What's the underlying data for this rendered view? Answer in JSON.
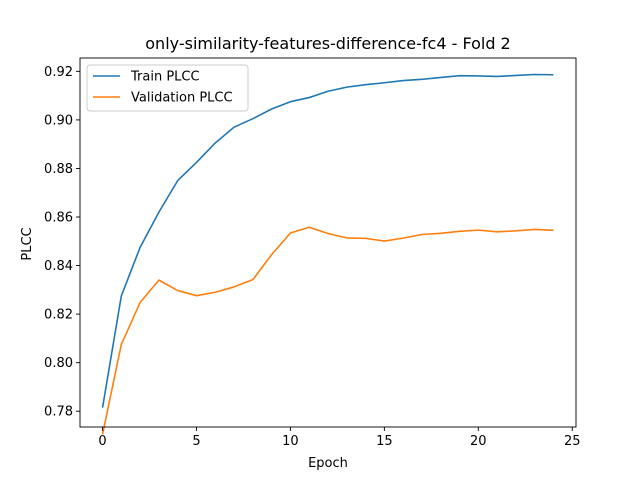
{
  "chart_data": {
    "type": "line",
    "title": "only-similarity-features-difference-fc4 - Fold 2",
    "xlabel": "Epoch",
    "ylabel": "PLCC",
    "xlim": [
      -1.2,
      25.2
    ],
    "ylim": [
      0.7735,
      0.9255
    ],
    "x_ticks": [
      0,
      5,
      10,
      15,
      20,
      25
    ],
    "y_ticks": [
      0.78,
      0.8,
      0.82,
      0.84,
      0.86,
      0.88,
      0.9,
      0.92
    ],
    "grid": false,
    "legend_position": "top-left",
    "x": [
      0,
      1,
      2,
      3,
      4,
      5,
      6,
      7,
      8,
      9,
      10,
      11,
      12,
      13,
      14,
      15,
      16,
      17,
      18,
      19,
      20,
      21,
      22,
      23,
      24
    ],
    "series": [
      {
        "name": "Train PLCC",
        "color": "#1f77b4",
        "values": [
          0.7815,
          0.8275,
          0.8475,
          0.862,
          0.875,
          0.8825,
          0.8905,
          0.897,
          0.9005,
          0.9045,
          0.9075,
          0.9092,
          0.9118,
          0.9135,
          0.9145,
          0.9153,
          0.9162,
          0.9167,
          0.9175,
          0.9182,
          0.9181,
          0.9179,
          0.9183,
          0.9187,
          0.9186
        ]
      },
      {
        "name": "Validation PLCC",
        "color": "#ff7f0e",
        "values": [
          0.7705,
          0.8075,
          0.8248,
          0.834,
          0.8297,
          0.8276,
          0.829,
          0.8312,
          0.8342,
          0.8445,
          0.8534,
          0.8558,
          0.8532,
          0.8514,
          0.8512,
          0.8501,
          0.8513,
          0.8528,
          0.8533,
          0.8541,
          0.8546,
          0.8539,
          0.8543,
          0.8549,
          0.8545
        ]
      }
    ]
  }
}
